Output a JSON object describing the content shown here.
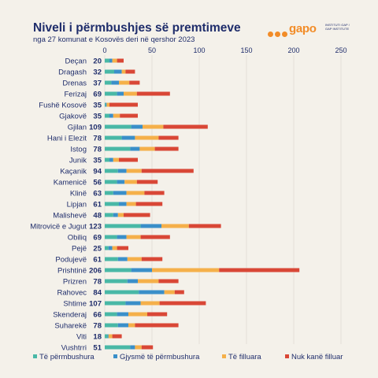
{
  "header": {
    "title": "Niveli i përmbushjes së premtimeve",
    "subtitle": "nga 27 komunat e Kosovës deri në qershor 2023"
  },
  "logo": {
    "wordmark": "gapo",
    "tagline": "Instituti GAP / GAP Institute"
  },
  "colors": {
    "fulfilled": "#49b8a6",
    "half_fulfilled": "#3a8fc9",
    "started": "#f5b04a",
    "not_started": "#d94736",
    "text": "#1f2d6b",
    "grid": "#d8d4cb",
    "background": "#f4f1ea"
  },
  "legend": [
    {
      "label": "Të përmbushura",
      "color": "#49b8a6"
    },
    {
      "label": "Gjysmë të përmbushura",
      "color": "#3a8fc9"
    },
    {
      "label": "Të filluara",
      "color": "#f5b04a"
    },
    {
      "label": "Nuk kanë filluar",
      "color": "#d94736"
    }
  ],
  "chart_data": {
    "type": "bar",
    "orientation": "horizontal",
    "stacked": true,
    "categories": [
      "Deçan",
      "Dragash",
      "Drenas",
      "Ferizaj",
      "Fushë Kosovë",
      "Gjakovë",
      "Gjilan",
      "Hani i Elezit",
      "Istog",
      "Junik",
      "Kaçanik",
      "Kamenicë",
      "Klinë",
      "Lipjan",
      "Malishevë",
      "Mitrovicë e Jugut",
      "Obiliq",
      "Pejë",
      "Podujevë",
      "Prishtinë",
      "Prizren",
      "Rahovec",
      "Shtime",
      "Skenderaj",
      "Suharekë",
      "Viti",
      "Vushtrri"
    ],
    "totals": [
      20,
      32,
      37,
      69,
      35,
      35,
      109,
      78,
      78,
      35,
      94,
      56,
      63,
      61,
      48,
      123,
      69,
      25,
      61,
      206,
      78,
      84,
      107,
      66,
      78,
      18,
      51
    ],
    "series": [
      {
        "name": "Të përmbushura",
        "values": [
          5,
          10,
          7,
          13,
          1,
          5,
          28,
          18,
          27,
          5,
          14,
          13,
          9,
          15,
          9,
          38,
          13,
          4,
          14,
          28,
          24,
          36,
          22,
          13,
          14,
          3,
          27
        ]
      },
      {
        "name": "Gjysmë të përmbushura",
        "values": [
          3,
          8,
          8,
          7,
          1,
          4,
          12,
          14,
          10,
          4,
          9,
          8,
          14,
          8,
          5,
          22,
          10,
          4,
          10,
          22,
          11,
          27,
          16,
          12,
          11,
          1,
          5
        ]
      },
      {
        "name": "Të filluara",
        "values": [
          5,
          4,
          11,
          14,
          3,
          7,
          22,
          25,
          16,
          6,
          16,
          13,
          19,
          10,
          6,
          29,
          15,
          5,
          15,
          71,
          22,
          11,
          20,
          20,
          7,
          4,
          7
        ]
      },
      {
        "name": "Nuk kanë filluar",
        "values": [
          7,
          10,
          11,
          35,
          30,
          19,
          47,
          21,
          25,
          20,
          55,
          22,
          21,
          28,
          28,
          34,
          31,
          12,
          22,
          85,
          21,
          10,
          49,
          21,
          46,
          10,
          12
        ]
      }
    ],
    "xlim": [
      0,
      250
    ],
    "xticks": [
      "0",
      "50",
      "100",
      "150",
      "200",
      "250"
    ],
    "grid": true,
    "legend_position": "bottom"
  }
}
